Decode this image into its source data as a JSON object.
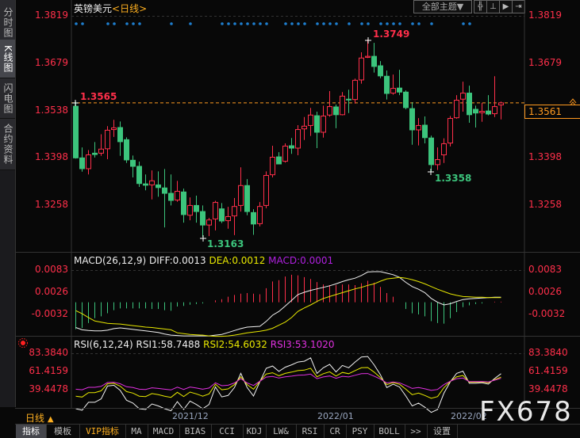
{
  "sidebar": {
    "tabs": [
      {
        "label": "分时图",
        "active": false
      },
      {
        "label": "K线图",
        "active": true
      },
      {
        "label": "闪电图",
        "active": false
      },
      {
        "label": "合约资料",
        "active": false
      }
    ],
    "period_label": "日线",
    "period_icon": "triangle-up-icon"
  },
  "header": {
    "symbol": "英镑美元",
    "period": "<日线>",
    "theme_button": "全部主题▼",
    "toolbar_icons": [
      "crosshair-icon",
      "range-icon",
      "play-icon",
      "step-forward-icon"
    ]
  },
  "price_axis": {
    "ticks": [
      "1.3819",
      "1.3679",
      "1.3538",
      "1.3398",
      "1.3258"
    ],
    "current_price": "1.3561"
  },
  "annotations": {
    "high_label": "1.3749",
    "low_label": "1.3163",
    "low2_label": "1.3358",
    "start_label": "1.3565"
  },
  "colors": {
    "up": "#ff2f4a",
    "down": "#3cc47c",
    "signal_dot": "#1e7fd0",
    "diff": "#f2f2f2",
    "dea": "#e8e800",
    "rsi1": "#f2f2f2",
    "rsi2": "#e8e800",
    "rsi3": "#e030e0",
    "current_line": "#ff9a20"
  },
  "chart_data": [
    {
      "type": "candlestick",
      "title": "英镑美元<日线>",
      "ylim": [
        1.315,
        1.3819
      ],
      "ohlc": [
        [
          1.3551,
          1.3565,
          1.3396,
          1.3398
        ],
        [
          1.3398,
          1.3429,
          1.3357,
          1.3366
        ],
        [
          1.3366,
          1.3421,
          1.3349,
          1.3407
        ],
        [
          1.3412,
          1.3445,
          1.3399,
          1.3408
        ],
        [
          1.3412,
          1.3468,
          1.3404,
          1.3424
        ],
        [
          1.3425,
          1.3492,
          1.3394,
          1.348
        ],
        [
          1.3482,
          1.3511,
          1.346,
          1.3487
        ],
        [
          1.3488,
          1.3506,
          1.3404,
          1.3446
        ],
        [
          1.3452,
          1.3459,
          1.3383,
          1.3392
        ],
        [
          1.3391,
          1.3405,
          1.334,
          1.3373
        ],
        [
          1.3373,
          1.3387,
          1.3312,
          1.3322
        ],
        [
          1.3321,
          1.3349,
          1.3302,
          1.3317
        ],
        [
          1.3318,
          1.3361,
          1.3275,
          1.333
        ],
        [
          1.3318,
          1.3358,
          1.3283,
          1.331
        ],
        [
          1.3309,
          1.3365,
          1.3192,
          1.3293
        ],
        [
          1.3293,
          1.3349,
          1.3257,
          1.3272
        ],
        [
          1.3273,
          1.333,
          1.3268,
          1.3299
        ],
        [
          1.3297,
          1.3307,
          1.3206,
          1.323
        ],
        [
          1.3228,
          1.3281,
          1.3213,
          1.3257
        ],
        [
          1.3257,
          1.3286,
          1.3206,
          1.3239
        ],
        [
          1.3239,
          1.3257,
          1.3163,
          1.3199
        ],
        [
          1.3199,
          1.322,
          1.3166,
          1.3214
        ],
        [
          1.3217,
          1.3271,
          1.3183,
          1.3266
        ],
        [
          1.3247,
          1.3264,
          1.3205,
          1.3211
        ],
        [
          1.3212,
          1.3253,
          1.3188,
          1.3224
        ],
        [
          1.3226,
          1.3279,
          1.3169,
          1.3254
        ],
        [
          1.3257,
          1.337,
          1.3239,
          1.3316
        ],
        [
          1.3316,
          1.3335,
          1.3228,
          1.3239
        ],
        [
          1.3236,
          1.3246,
          1.317,
          1.3202
        ],
        [
          1.3203,
          1.3267,
          1.3195,
          1.3254
        ],
        [
          1.3257,
          1.3358,
          1.3249,
          1.3346
        ],
        [
          1.3348,
          1.3434,
          1.334,
          1.34
        ],
        [
          1.3401,
          1.3415,
          1.338,
          1.338
        ],
        [
          1.3388,
          1.3441,
          1.3384,
          1.3433
        ],
        [
          1.3434,
          1.3457,
          1.341,
          1.3427
        ],
        [
          1.3427,
          1.3495,
          1.3406,
          1.3482
        ],
        [
          1.3484,
          1.3519,
          1.3451,
          1.3492
        ],
        [
          1.3494,
          1.3546,
          1.3463,
          1.3525
        ],
        [
          1.3523,
          1.3535,
          1.3427,
          1.3474
        ],
        [
          1.3474,
          1.3553,
          1.3458,
          1.3522
        ],
        [
          1.3525,
          1.3596,
          1.352,
          1.355
        ],
        [
          1.3549,
          1.3556,
          1.3486,
          1.3526
        ],
        [
          1.3526,
          1.3593,
          1.3524,
          1.3581
        ],
        [
          1.3572,
          1.36,
          1.3531,
          1.3571
        ],
        [
          1.3571,
          1.3633,
          1.3559,
          1.3628
        ],
        [
          1.3629,
          1.3711,
          1.3618,
          1.3694
        ],
        [
          1.3696,
          1.3749,
          1.3694,
          1.3699
        ],
        [
          1.3699,
          1.3739,
          1.3651,
          1.3669
        ],
        [
          1.3671,
          1.3685,
          1.3634,
          1.3641
        ],
        [
          1.364,
          1.3657,
          1.3571,
          1.3589
        ],
        [
          1.359,
          1.3645,
          1.3585,
          1.3604
        ],
        [
          1.3605,
          1.3659,
          1.3584,
          1.3593
        ],
        [
          1.3593,
          1.3598,
          1.3542,
          1.3547
        ],
        [
          1.3544,
          1.3563,
          1.3437,
          1.3481
        ],
        [
          1.3481,
          1.3516,
          1.3435,
          1.3494
        ],
        [
          1.3495,
          1.3521,
          1.3441,
          1.3458
        ],
        [
          1.3457,
          1.3464,
          1.3358,
          1.3378
        ],
        [
          1.3378,
          1.3429,
          1.3362,
          1.3393
        ],
        [
          1.3407,
          1.3456,
          1.3383,
          1.344
        ],
        [
          1.3442,
          1.3522,
          1.3432,
          1.3515
        ],
        [
          1.3517,
          1.3584,
          1.3514,
          1.3569
        ],
        [
          1.3572,
          1.3624,
          1.3535,
          1.359
        ],
        [
          1.359,
          1.3612,
          1.3502,
          1.3526
        ],
        [
          1.3542,
          1.3553,
          1.3488,
          1.3531
        ],
        [
          1.3532,
          1.3561,
          1.3505,
          1.3536
        ],
        [
          1.3537,
          1.3584,
          1.3524,
          1.3528
        ],
        [
          1.3529,
          1.364,
          1.3519,
          1.355
        ],
        [
          1.3555,
          1.3565,
          1.3512,
          1.3561
        ]
      ],
      "signal_dots": [
        1,
        2,
        6,
        7,
        9,
        10,
        11,
        16,
        19,
        24,
        25,
        26,
        27,
        28,
        29,
        30,
        31,
        34,
        35,
        36,
        37,
        39,
        40,
        41,
        42,
        44,
        46,
        47,
        49,
        50,
        51,
        52,
        54,
        55,
        57,
        62,
        63
      ],
      "x_ticks": [
        "2021/12",
        "2022/01",
        "2022/02"
      ]
    },
    {
      "type": "line",
      "title": "MACD(26,12,9)",
      "labels": {
        "name": "MACD(26,12,9)",
        "diff": "DIFF:0.0013",
        "dea": "DEA:0.0012",
        "macd": "MACD:0.0001"
      },
      "yticks": [
        "0.0083",
        "0.0026",
        "-0.0032"
      ],
      "diff": [
        -0.0066,
        -0.0072,
        -0.0074,
        -0.0075,
        -0.0075,
        -0.0073,
        -0.0069,
        -0.0067,
        -0.0069,
        -0.0071,
        -0.0073,
        -0.0075,
        -0.0077,
        -0.0079,
        -0.0083,
        -0.0086,
        -0.0087,
        -0.0088,
        -0.0088,
        -0.0088,
        -0.0088,
        -0.0088,
        -0.0086,
        -0.0084,
        -0.0079,
        -0.0074,
        -0.0069,
        -0.0065,
        -0.0064,
        -0.0063,
        -0.005,
        -0.0034,
        -0.0024,
        -0.001,
        0.0005,
        0.002,
        0.0026,
        0.0031,
        0.0035,
        0.0039,
        0.0043,
        0.0048,
        0.0054,
        0.0059,
        0.0063,
        0.007,
        0.0079,
        0.008,
        0.008,
        0.0076,
        0.0072,
        0.0065,
        0.0052,
        0.0041,
        0.0034,
        0.0025,
        0.001,
        0.0,
        -0.0007,
        -0.0004,
        0.0002,
        0.0007,
        0.0009,
        0.001,
        0.0011,
        0.0012,
        0.0013,
        0.0013
      ],
      "dea": [
        -0.0022,
        -0.003,
        -0.004,
        -0.0049,
        -0.0052,
        -0.0055,
        -0.0056,
        -0.0057,
        -0.0059,
        -0.0061,
        -0.0063,
        -0.0065,
        -0.0066,
        -0.0068,
        -0.007,
        -0.0072,
        -0.008,
        -0.0082,
        -0.0084,
        -0.0085,
        -0.0086,
        -0.0088,
        -0.0089,
        -0.0089,
        -0.0088,
        -0.0086,
        -0.0083,
        -0.008,
        -0.0078,
        -0.0076,
        -0.0073,
        -0.0068,
        -0.006,
        -0.0052,
        -0.004,
        -0.0024,
        -0.0015,
        -0.0007,
        0.0002,
        0.001,
        0.0015,
        0.002,
        0.0025,
        0.003,
        0.0035,
        0.0039,
        0.0044,
        0.0048,
        0.0055,
        0.0061,
        0.0063,
        0.0065,
        0.0063,
        0.0059,
        0.0054,
        0.0048,
        0.0041,
        0.0034,
        0.0028,
        0.0022,
        0.0018,
        0.0015,
        0.0014,
        0.0013,
        0.0013,
        0.0012,
        0.0012,
        0.0012
      ]
    },
    {
      "type": "line",
      "title": "RSI(6,12,24)",
      "labels": {
        "name": "RSI(6,12,24)",
        "rsi1": "RSI1:58.7488",
        "rsi2": "RSI2:54.6032",
        "rsi3": "RSI3:53.1020"
      },
      "yticks": [
        "83.3840",
        "61.4159",
        "39.4478"
      ],
      "rsi1": [
        16.5,
        14.7,
        24.3,
        24.3,
        28.4,
        43.8,
        44.8,
        38.6,
        26.7,
        23.3,
        16.5,
        15.6,
        22.3,
        19.9,
        16.5,
        14,
        25,
        15.7,
        25.7,
        21.6,
        16.5,
        21.6,
        42.7,
        30.8,
        32.5,
        42,
        59.1,
        42,
        31.8,
        48.9,
        65.2,
        68,
        61.5,
        66.6,
        69.4,
        72.8,
        73.7,
        77.8,
        59.1,
        65.9,
        70,
        60.8,
        68.7,
        65.9,
        72.8,
        78.9,
        79.5,
        69.4,
        57.4,
        42,
        46.1,
        42.7,
        31.8,
        19.9,
        23.3,
        18.2,
        12,
        15.6,
        35.2,
        48.9,
        59.1,
        61.8,
        47.2,
        47.2,
        47.9,
        46.1,
        53,
        58.7
      ],
      "rsi2": [
        31.6,
        30.6,
        35.9,
        35.9,
        38.1,
        46.6,
        47.1,
        43.7,
        37.2,
        35.3,
        31.6,
        31.1,
        34.8,
        33.4,
        31.6,
        30.2,
        36.3,
        31.1,
        36.6,
        34.4,
        31.6,
        34.4,
        46,
        39.4,
        40.4,
        45.6,
        55,
        45.6,
        40,
        49.4,
        58.4,
        59.9,
        56.3,
        59.1,
        60.7,
        62.5,
        63,
        65.3,
        55,
        58.7,
        61,
        55.9,
        60.3,
        58.7,
        62.5,
        65.9,
        66.2,
        60.7,
        54.1,
        45.6,
        47.9,
        46,
        40,
        33.4,
        35.3,
        32.5,
        29.1,
        31.1,
        41.9,
        49.4,
        55,
        56.5,
        48.5,
        48.5,
        48.8,
        47.9,
        51.6,
        54.6
      ],
      "rsi3": [
        40,
        39.4,
        42.3,
        42.3,
        43.5,
        48.1,
        48.4,
        46.6,
        43,
        42,
        40,
        39.7,
        41.7,
        41,
        40,
        39.2,
        42.5,
        39.7,
        42.7,
        41.5,
        40,
        41.5,
        47.8,
        44.2,
        44.8,
        47.6,
        52.7,
        47.6,
        44.5,
        49.7,
        54.6,
        55.4,
        53.5,
        55,
        55.8,
        56.8,
        57.1,
        58.3,
        52.7,
        54.8,
        56,
        53.2,
        55.6,
        54.8,
        56.8,
        58.7,
        58.9,
        55.8,
        52.2,
        47.6,
        48.8,
        47.8,
        44.5,
        41,
        42,
        40.5,
        38.6,
        39.7,
        45.6,
        49.7,
        52.7,
        53.5,
        49.2,
        49.2,
        49.4,
        48.8,
        50.9,
        53.1
      ]
    }
  ],
  "toolbar": {
    "items": [
      {
        "label": "指标",
        "active": true
      },
      {
        "label": "模板"
      },
      {
        "label": "VIP指标",
        "vip": true
      },
      {
        "label": "MA"
      },
      {
        "label": "MACD"
      },
      {
        "label": "BIAS"
      },
      {
        "label": "CCI"
      },
      {
        "label": "KDJ"
      },
      {
        "label": "LW&"
      },
      {
        "label": "RSI"
      },
      {
        "label": "CR"
      },
      {
        "label": "PSY"
      },
      {
        "label": "BOLL"
      },
      {
        "label": ">>"
      },
      {
        "label": "设置"
      }
    ]
  },
  "watermark": "FX678"
}
